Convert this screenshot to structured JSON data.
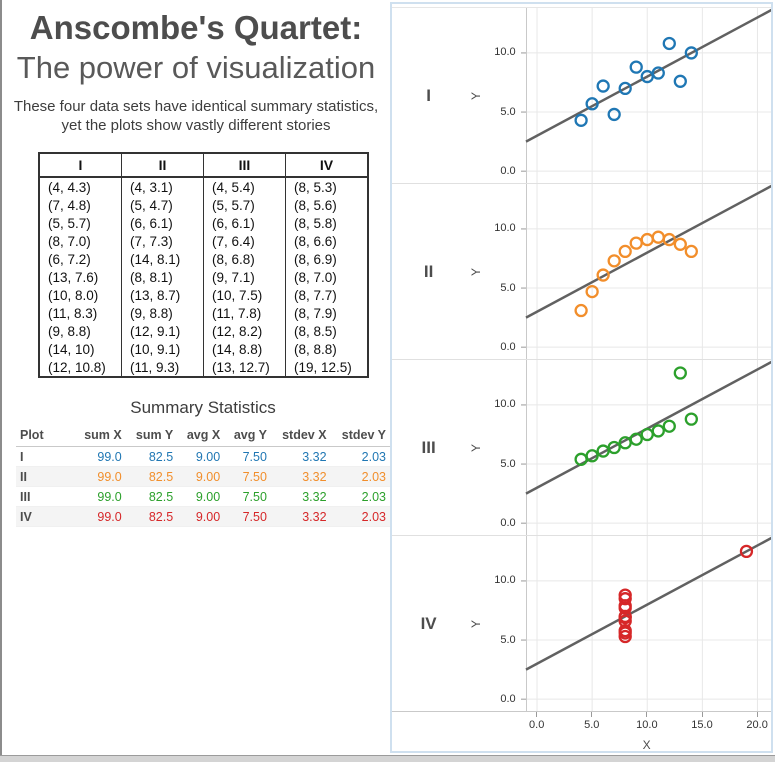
{
  "header": {
    "title_line1": "Anscombe's Quartet:",
    "title_line2": "The power of visualization",
    "subtitle": "These four data sets have identical summary statistics, yet the plots show vastly different stories"
  },
  "data_table": {
    "columns": [
      "I",
      "II",
      "III",
      "IV"
    ],
    "rows": [
      [
        "(4, 4.3)",
        "(4, 3.1)",
        "(4, 5.4)",
        "(8, 5.3)"
      ],
      [
        "(7, 4.8)",
        "(5, 4.7)",
        "(5, 5.7)",
        "(8, 5.6)"
      ],
      [
        "(5, 5.7)",
        "(6, 6.1)",
        "(6, 6.1)",
        "(8, 5.8)"
      ],
      [
        "(8, 7.0)",
        "(7, 7.3)",
        "(7, 6.4)",
        "(8, 6.6)"
      ],
      [
        "(6, 7.2)",
        "(14, 8.1)",
        "(8, 6.8)",
        "(8, 6.9)"
      ],
      [
        "(13, 7.6)",
        "(8, 8.1)",
        "(9, 7.1)",
        "(8, 7.0)"
      ],
      [
        "(10, 8.0)",
        "(13, 8.7)",
        "(10, 7.5)",
        "(8, 7.7)"
      ],
      [
        "(11, 8.3)",
        "(9, 8.8)",
        "(11, 7.8)",
        "(8, 7.9)"
      ],
      [
        "(9, 8.8)",
        "(12, 9.1)",
        "(12, 8.2)",
        "(8, 8.5)"
      ],
      [
        "(14, 10)",
        "(10, 9.1)",
        "(14, 8.8)",
        "(8, 8.8)"
      ],
      [
        "(12, 10.8)",
        "(11, 9.3)",
        "(13, 12.7)",
        "(19, 12.5)"
      ]
    ]
  },
  "summary": {
    "title": "Summary Statistics",
    "columns": [
      "Plot",
      "sum X",
      "sum Y",
      "avg X",
      "avg Y",
      "stdev X",
      "stdev Y"
    ],
    "rows": [
      {
        "label": "I",
        "color": "#1F77B4",
        "values": [
          "99.0",
          "82.5",
          "9.00",
          "7.50",
          "3.32",
          "2.03"
        ]
      },
      {
        "label": "II",
        "color": "#F28E2B",
        "values": [
          "99.0",
          "82.5",
          "9.00",
          "7.50",
          "3.32",
          "2.03"
        ]
      },
      {
        "label": "III",
        "color": "#2CA02C",
        "values": [
          "99.0",
          "82.5",
          "9.00",
          "7.50",
          "3.32",
          "2.03"
        ]
      },
      {
        "label": "IV",
        "color": "#D62728",
        "values": [
          "99.0",
          "82.5",
          "9.00",
          "7.50",
          "3.32",
          "2.03"
        ]
      }
    ]
  },
  "chart_data": {
    "type": "scatter",
    "title": "Anscombe's Quartet small multiples",
    "xlabel": "X",
    "ylabel": "Y",
    "x_ticks": [
      0,
      5,
      10,
      15,
      20
    ],
    "y_ticks": [
      0,
      5,
      10
    ],
    "xlim": [
      -1,
      21.5
    ],
    "ylim": [
      -1,
      13.8
    ],
    "grid": true,
    "legend_position": "row-labels-left",
    "trend_line": {
      "slope": 0.5,
      "intercept": 3,
      "color": "#616161"
    },
    "series": [
      {
        "name": "I",
        "color": "#1F77B4",
        "x": [
          4,
          7,
          5,
          8,
          6,
          13,
          10,
          11,
          9,
          14,
          12
        ],
        "y": [
          4.3,
          4.8,
          5.7,
          7.0,
          7.2,
          7.6,
          8.0,
          8.3,
          8.8,
          10,
          10.8
        ]
      },
      {
        "name": "II",
        "color": "#F28E2B",
        "x": [
          4,
          5,
          6,
          7,
          14,
          8,
          13,
          9,
          12,
          10,
          11
        ],
        "y": [
          3.1,
          4.7,
          6.1,
          7.3,
          8.1,
          8.1,
          8.7,
          8.8,
          9.1,
          9.1,
          9.3
        ]
      },
      {
        "name": "III",
        "color": "#2CA02C",
        "x": [
          4,
          5,
          6,
          7,
          8,
          9,
          10,
          11,
          12,
          14,
          13
        ],
        "y": [
          5.4,
          5.7,
          6.1,
          6.4,
          6.8,
          7.1,
          7.5,
          7.8,
          8.2,
          8.8,
          12.7
        ]
      },
      {
        "name": "IV",
        "color": "#D62728",
        "x": [
          8,
          8,
          8,
          8,
          8,
          8,
          8,
          8,
          8,
          8,
          19
        ],
        "y": [
          5.3,
          5.6,
          5.8,
          6.6,
          6.9,
          7.0,
          7.7,
          7.9,
          8.5,
          8.8,
          12.5
        ]
      }
    ],
    "style": {
      "grid_color": "#e8e8e8",
      "axis_color": "#c9c9c9",
      "tick_color": "#9a9a9a",
      "marker_radius": 5.5,
      "marker_stroke_width": 2.3,
      "trend_width": 2.5
    }
  }
}
